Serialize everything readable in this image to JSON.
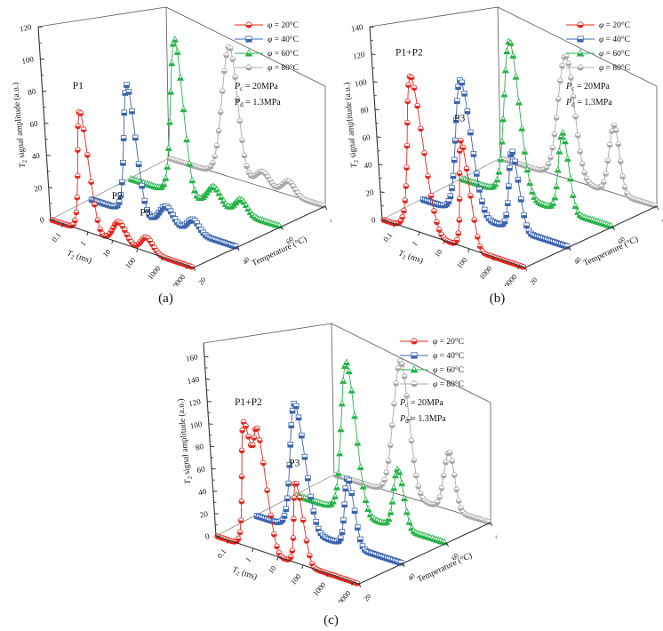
{
  "figure": {
    "captions": {
      "a": "(a)",
      "b": "(b)",
      "c": "(c)"
    }
  },
  "colors": {
    "red": "#e8251d",
    "blue": "#3c64ad",
    "green": "#27b24a",
    "gray": "#a9a9a9",
    "axis": "#333333"
  },
  "chart_data": [
    {
      "id": "a",
      "type": "line",
      "subtype": "3d-waterfall",
      "xlabel": "T2 (ms)",
      "ylabel": "T2 signal amplitude (a.u.)",
      "zlabel": "Temperature (°C)",
      "x_scale": "log",
      "x_ticks": [
        0.1,
        1,
        10,
        100,
        1000,
        10000
      ],
      "y_ticks": [
        0,
        20,
        40,
        60,
        80,
        100,
        120
      ],
      "y_axis_max": 120,
      "z_ticks": [
        20,
        40,
        60,
        80
      ],
      "legend": [
        {
          "label": "φ = 20°C",
          "color": "red",
          "marker": "circle"
        },
        {
          "label": "φ = 40°C",
          "color": "blue",
          "marker": "square"
        },
        {
          "label": "φ = 60°C",
          "color": "green",
          "marker": "triangle"
        },
        {
          "label": "φ = 80°C",
          "color": "gray",
          "marker": "circle"
        }
      ],
      "conditions": [
        "Pc = 20MPa",
        "Pd = 1.3MPa"
      ],
      "annotations": [
        {
          "text": "P1",
          "t2_ms": 1,
          "amplitude": 92,
          "temp_c": 20
        },
        {
          "text": "P2",
          "t2_ms": 20,
          "amplitude": 29,
          "temp_c": 20
        },
        {
          "text": "P3",
          "t2_ms": 260,
          "amplitude": 25,
          "temp_c": 20
        }
      ],
      "series": [
        {
          "temp_c": 20,
          "color": "red",
          "marker": "circle",
          "peaks": [
            {
              "t2_ms": 1.0,
              "amp": 78,
              "width_log": 0.3
            },
            {
              "t2_ms": 20,
              "amp": 14,
              "width_log": 0.36
            },
            {
              "t2_ms": 250,
              "amp": 10,
              "width_log": 0.33
            }
          ]
        },
        {
          "temp_c": 40,
          "color": "blue",
          "marker": "square",
          "peaks": [
            {
              "t2_ms": 1.6,
              "amp": 90,
              "width_log": 0.32
            },
            {
              "t2_ms": 32,
              "amp": 13,
              "width_log": 0.36
            },
            {
              "t2_ms": 350,
              "amp": 10,
              "width_log": 0.32
            }
          ]
        },
        {
          "temp_c": 60,
          "color": "green",
          "marker": "triangle",
          "peaks": [
            {
              "t2_ms": 2.6,
              "amp": 120,
              "width_log": 0.33
            },
            {
              "t2_ms": 52,
              "amp": 15,
              "width_log": 0.36
            },
            {
              "t2_ms": 550,
              "amp": 12,
              "width_log": 0.32
            }
          ]
        },
        {
          "temp_c": 80,
          "color": "gray",
          "marker": "circle",
          "peaks": [
            {
              "t2_ms": 6,
              "amp": 113,
              "width_log": 0.4
            },
            {
              "t2_ms": 90,
              "amp": 14,
              "width_log": 0.36
            },
            {
              "t2_ms": 800,
              "amp": 13,
              "width_log": 0.32
            }
          ]
        }
      ]
    },
    {
      "id": "b",
      "type": "line",
      "subtype": "3d-waterfall",
      "xlabel": "T2 (ms)",
      "ylabel": "T2 signal amplitude (a.u.)",
      "zlabel": "Temperature (°C)",
      "x_scale": "log",
      "x_ticks": [
        0.1,
        1,
        10,
        100,
        1000,
        10000
      ],
      "y_ticks": [
        0,
        20,
        40,
        60,
        80,
        100,
        120,
        140
      ],
      "y_axis_max": 140,
      "z_ticks": [
        20,
        40,
        60,
        80
      ],
      "legend": [
        {
          "label": "φ = 20°C",
          "color": "red",
          "marker": "circle"
        },
        {
          "label": "φ = 40°C",
          "color": "blue",
          "marker": "square"
        },
        {
          "label": "φ = 60°C",
          "color": "green",
          "marker": "triangle"
        },
        {
          "label": "φ = 80°C",
          "color": "gray",
          "marker": "circle"
        }
      ],
      "conditions": [
        "Pc = 20MPa",
        "Pd = 1.3MPa"
      ],
      "annotations": [
        {
          "text": "P1+P2",
          "t2_ms": 1.2,
          "amplitude": 133,
          "temp_c": 20
        },
        {
          "text": "P3",
          "t2_ms": 100,
          "amplitude": 100,
          "temp_c": 20
        }
      ],
      "series": [
        {
          "temp_c": 20,
          "color": "red",
          "marker": "circle",
          "peaks": [
            {
              "t2_ms": 1.2,
              "amp": 118,
              "width_log": 0.44
            },
            {
              "t2_ms": 100,
              "amp": 85,
              "width_log": 0.27
            }
          ]
        },
        {
          "temp_c": 40,
          "color": "blue",
          "marker": "square",
          "peaks": [
            {
              "t2_ms": 2.0,
              "amp": 110,
              "width_log": 0.42
            },
            {
              "t2_ms": 160,
              "amp": 68,
              "width_log": 0.27
            }
          ]
        },
        {
          "temp_c": 60,
          "color": "green",
          "marker": "triangle",
          "peaks": [
            {
              "t2_ms": 3.5,
              "amp": 140,
              "width_log": 0.4
            },
            {
              "t2_ms": 280,
              "amp": 76,
              "width_log": 0.27
            }
          ]
        },
        {
          "temp_c": 80,
          "color": "gray",
          "marker": "circle",
          "peaks": [
            {
              "t2_ms": 9,
              "amp": 125,
              "width_log": 0.42
            },
            {
              "t2_ms": 500,
              "amp": 74,
              "width_log": 0.27
            }
          ]
        }
      ]
    },
    {
      "id": "c",
      "type": "line",
      "subtype": "3d-waterfall",
      "xlabel": "T2 (ms)",
      "ylabel": "T2 signal amplitude (a.u.)",
      "zlabel": "Temperature (°C)",
      "x_scale": "log",
      "x_ticks": [
        0.1,
        1,
        10,
        100,
        1000,
        10000
      ],
      "y_ticks": [
        0,
        20,
        40,
        60,
        80,
        100,
        120,
        140,
        160
      ],
      "y_axis_max": 172,
      "z_ticks": [
        20,
        40,
        60,
        80
      ],
      "legend": [
        {
          "label": "φ = 20°C",
          "color": "red",
          "marker": "circle"
        },
        {
          "label": "φ = 40°C",
          "color": "blue",
          "marker": "square"
        },
        {
          "label": "φ = 60°C",
          "color": "green",
          "marker": "triangle"
        },
        {
          "label": "φ = 80°C",
          "color": "gray",
          "marker": "circle"
        }
      ],
      "conditions": [
        "Pc = 20MPa",
        "Pd = 1.3MPa"
      ],
      "annotations": [
        {
          "text": "P1+P2",
          "t2_ms": 1.6,
          "amplitude": 134,
          "temp_c": 20
        },
        {
          "text": "P3",
          "t2_ms": 90,
          "amplitude": 95,
          "temp_c": 20
        }
      ],
      "series": [
        {
          "temp_c": 20,
          "color": "red",
          "marker": "circle",
          "peaks": [
            {
              "t2_ms": 0.9,
              "amp": 112,
              "width_log": 0.3
            },
            {
              "t2_ms": 3.2,
              "amp": 112,
              "width_log": 0.3
            },
            {
              "t2_ms": 90,
              "amp": 80,
              "width_log": 0.25
            }
          ]
        },
        {
          "temp_c": 40,
          "color": "blue",
          "marker": "square",
          "peaks": [
            {
              "t2_ms": 2.0,
              "amp": 128,
              "width_log": 0.4
            },
            {
              "t2_ms": 180,
              "amp": 73,
              "width_log": 0.26
            }
          ]
        },
        {
          "temp_c": 60,
          "color": "green",
          "marker": "triangle",
          "peaks": [
            {
              "t2_ms": 4.5,
              "amp": 168,
              "width_log": 0.38
            },
            {
              "t2_ms": 300,
              "amp": 70,
              "width_log": 0.27
            }
          ]
        },
        {
          "temp_c": 80,
          "color": "gray",
          "marker": "circle",
          "peaks": [
            {
              "t2_ms": 10,
              "amp": 168,
              "width_log": 0.4
            },
            {
              "t2_ms": 550,
              "amp": 78,
              "width_log": 0.27
            }
          ]
        }
      ]
    }
  ]
}
